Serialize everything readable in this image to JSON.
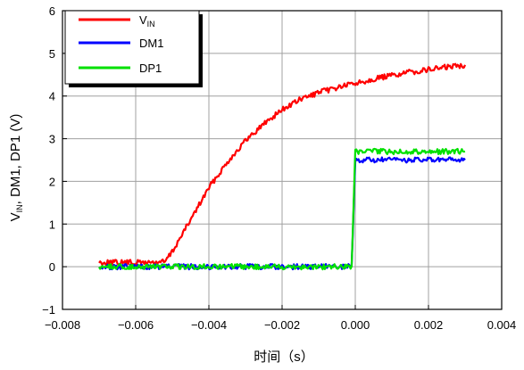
{
  "chart_data": {
    "type": "line",
    "xlabel": "时间（s）",
    "ylabel_main": "V",
    "ylabel_sub": "IN",
    "ylabel_rest": ", DM1, DP1 (V)",
    "xlim": [
      -0.008,
      0.004
    ],
    "ylim": [
      -1,
      6
    ],
    "x_ticks": [
      "−0.008",
      "−0.006",
      "−0.004",
      "−0.002",
      "0.000",
      "0.002",
      "0.004"
    ],
    "y_ticks": [
      "−1",
      "0",
      "1",
      "2",
      "3",
      "4",
      "5",
      "6"
    ],
    "grid": true,
    "legend_position": "top-left",
    "series": [
      {
        "name": "V",
        "name_sub": "IN",
        "color": "#ff0000",
        "x": [
          -0.007,
          -0.0055,
          -0.0052,
          -0.005,
          -0.0045,
          -0.004,
          -0.0035,
          -0.003,
          -0.0025,
          -0.002,
          -0.0015,
          -0.001,
          -0.0005,
          0.0,
          0.0005,
          0.001,
          0.0015,
          0.002,
          0.0025,
          0.003
        ],
        "y": [
          0.1,
          0.1,
          0.12,
          0.35,
          1.1,
          1.85,
          2.45,
          2.95,
          3.35,
          3.68,
          3.92,
          4.08,
          4.2,
          4.3,
          4.4,
          4.48,
          4.56,
          4.62,
          4.68,
          4.73
        ]
      },
      {
        "name": "DM1",
        "color": "#0000ff",
        "x": [
          -0.007,
          -0.0001,
          0.0,
          0.003
        ],
        "y": [
          0.0,
          0.0,
          2.5,
          2.5
        ]
      },
      {
        "name": "DP1",
        "color": "#00e000",
        "x": [
          -0.007,
          -0.0001,
          0.0,
          0.003
        ],
        "y": [
          0.0,
          0.0,
          2.7,
          2.7
        ]
      }
    ]
  }
}
